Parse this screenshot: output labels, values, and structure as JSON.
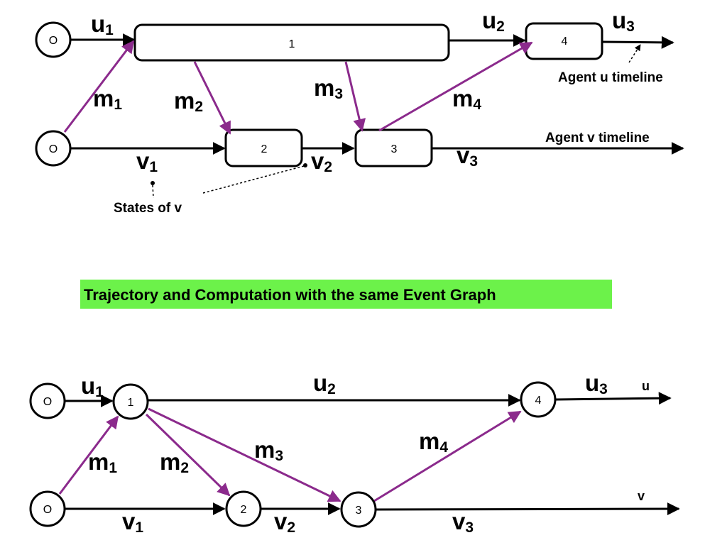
{
  "colors": {
    "message": "#8b2a8c",
    "timeline": "#000000",
    "banner": "#6cf24a"
  },
  "top": {
    "origin_u": "O",
    "origin_v": "O",
    "states": {
      "s1": "1",
      "s2": "2",
      "s3": "3",
      "s4": "4"
    },
    "u_labels": {
      "u1": [
        "u",
        "1"
      ],
      "u2": [
        "u",
        "2"
      ],
      "u3": [
        "u",
        "3"
      ]
    },
    "v_labels": {
      "v1": [
        "v",
        "1"
      ],
      "v2": [
        "v",
        "2"
      ],
      "v3": [
        "v",
        "3"
      ]
    },
    "m_labels": {
      "m1": [
        "m",
        "1"
      ],
      "m2": [
        "m",
        "2"
      ],
      "m3": [
        "m",
        "3"
      ],
      "m4": [
        "m",
        "4"
      ]
    },
    "notes": {
      "agent_u": "Agent u timeline",
      "agent_v": "Agent v timeline",
      "states_of_v": "States of v"
    }
  },
  "banner": "Trajectory and Computation with the same Event Graph",
  "bottom": {
    "origin_u": "O",
    "origin_v": "O",
    "nodes": {
      "n1": "1",
      "n2": "2",
      "n3": "3",
      "n4": "4"
    },
    "u_labels": {
      "u1": [
        "u",
        "1"
      ],
      "u2": [
        "u",
        "2"
      ],
      "u3": [
        "u",
        "3"
      ]
    },
    "v_labels": {
      "v1": [
        "v",
        "1"
      ],
      "v2": [
        "v",
        "2"
      ],
      "v3": [
        "v",
        "3"
      ]
    },
    "m_labels": {
      "m1": [
        "m",
        "1"
      ],
      "m2": [
        "m",
        "2"
      ],
      "m3": [
        "m",
        "3"
      ],
      "m4": [
        "m",
        "4"
      ]
    },
    "timeline_u": "u",
    "timeline_v": "v"
  }
}
